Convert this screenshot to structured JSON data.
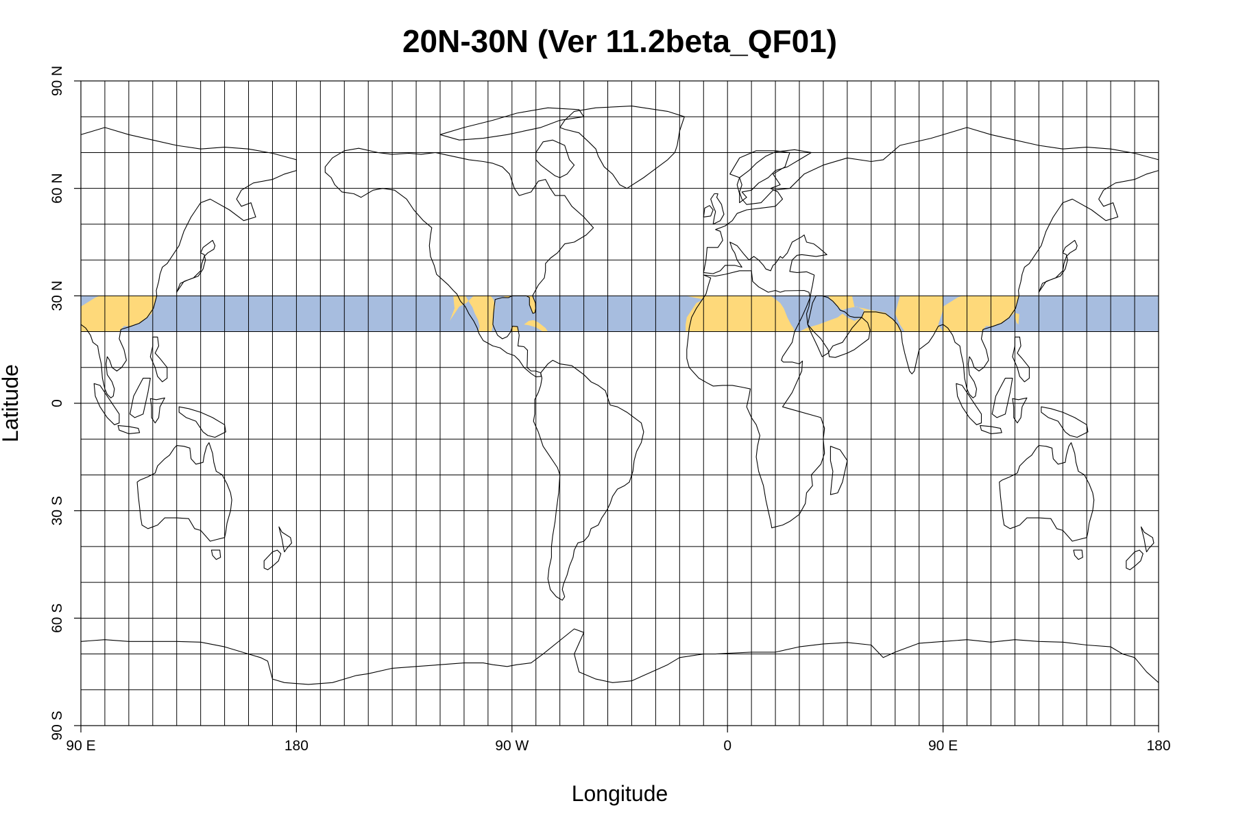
{
  "title": "20N-30N (Ver 11.2beta_QF01)",
  "xlabel": "Longitude",
  "ylabel": "Latitude",
  "x_ticks": [
    {
      "lon": 90,
      "label": "90 E"
    },
    {
      "lon": 180,
      "label": "180"
    },
    {
      "lon": 270,
      "label": "90 W"
    },
    {
      "lon": 360,
      "label": "0"
    },
    {
      "lon": 450,
      "label": "90 E"
    },
    {
      "lon": 540,
      "label": "180"
    }
  ],
  "y_ticks": [
    {
      "lat": 90,
      "label": "90 N"
    },
    {
      "lat": 60,
      "label": "60 N"
    },
    {
      "lat": 30,
      "label": "30 N"
    },
    {
      "lat": 0,
      "label": "0"
    },
    {
      "lat": -30,
      "label": "30 S"
    },
    {
      "lat": -60,
      "label": "60 S"
    },
    {
      "lat": -90,
      "label": "90 S"
    }
  ],
  "map": {
    "projection": "equirectangular",
    "lon_range": [
      90,
      540
    ],
    "lat_range": [
      -90,
      90
    ],
    "grid_spacing_deg": 10,
    "highlight_band": {
      "lat_min": 20,
      "lat_max": 30
    },
    "colors": {
      "ocean_band": "#a7bddf",
      "land_band": "#fed97a",
      "grid": "#000000",
      "coast": "#000000"
    }
  }
}
